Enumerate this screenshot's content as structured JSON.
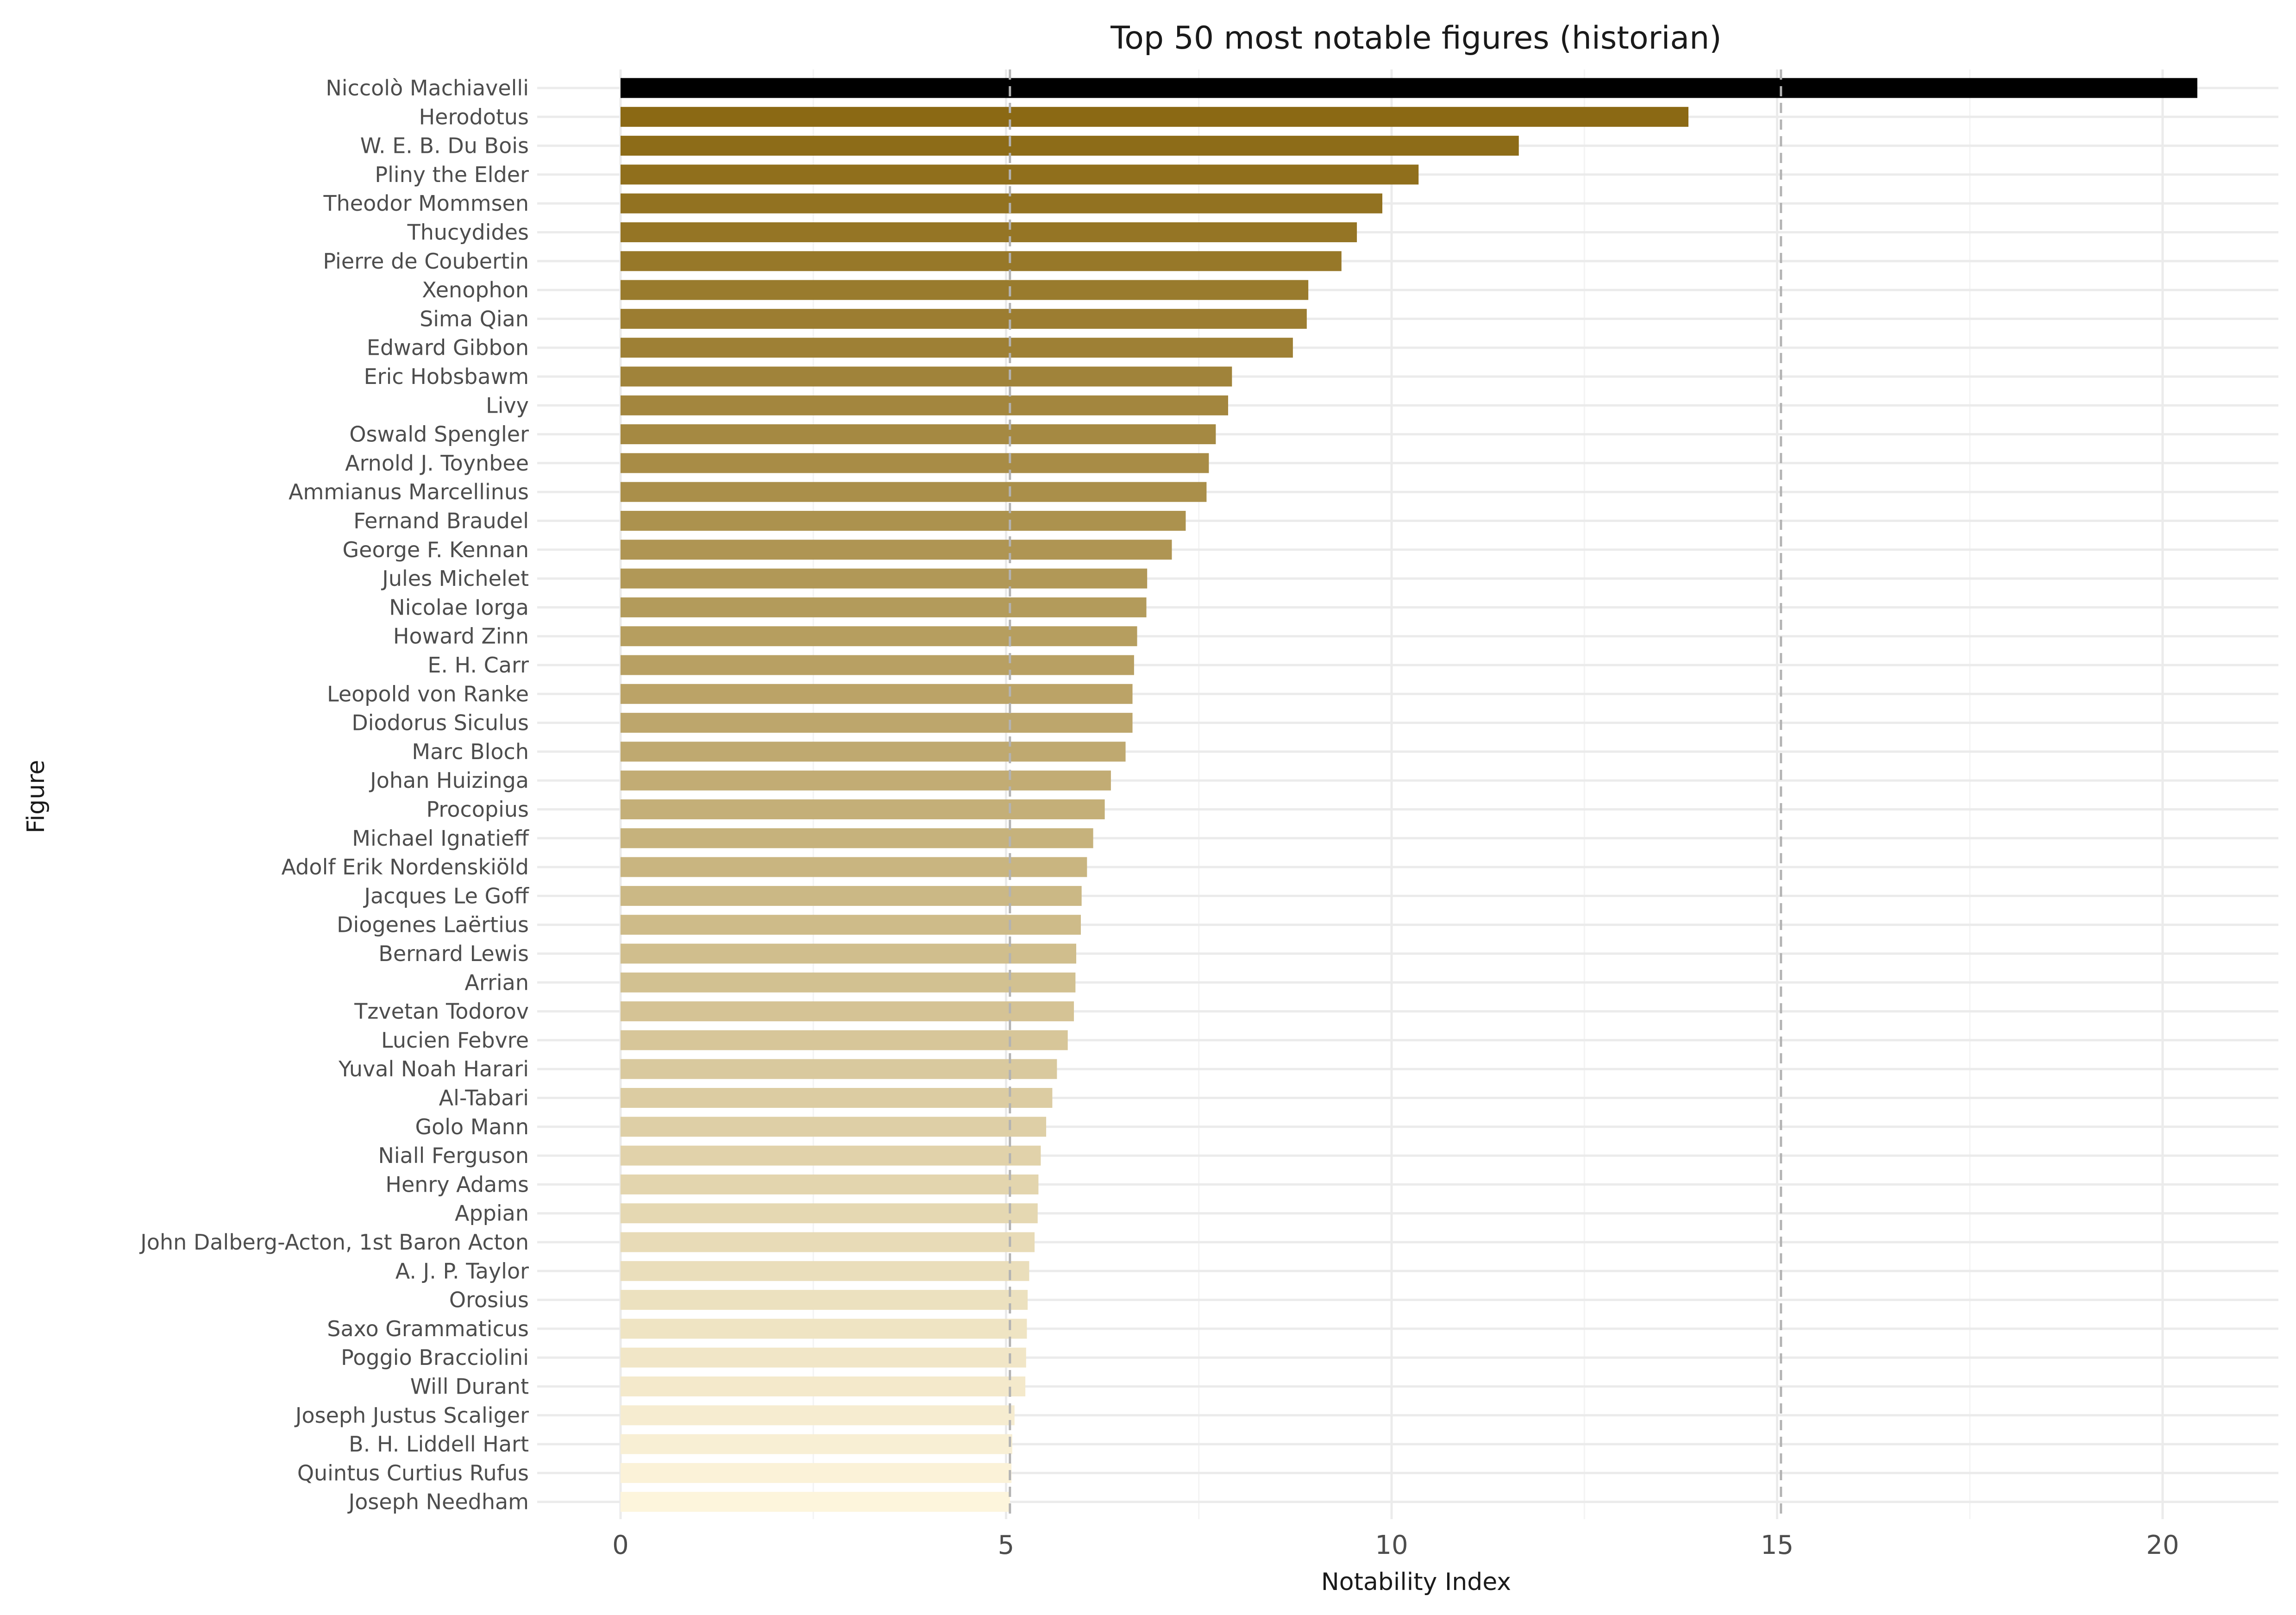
{
  "chart_data": {
    "type": "bar",
    "orientation": "horizontal",
    "title": "Top 50 most notable figures (historian)",
    "xlabel": "Notability Index",
    "ylabel": "Figure",
    "xlim": [
      -2,
      21.5
    ],
    "xticks": [
      0,
      5,
      10,
      15,
      20
    ],
    "grid": true,
    "legend": "none",
    "reference_lines": [
      5.05,
      15.05
    ],
    "color_scale": {
      "high": "#000000",
      "second": "#8b6914",
      "low": "#fdf5dc"
    },
    "categories": [
      "Niccolò Machiavelli",
      "Herodotus",
      "W. E. B. Du Bois",
      "Pliny the Elder",
      "Theodor Mommsen",
      "Thucydides",
      "Pierre de Coubertin",
      "Xenophon",
      "Sima Qian",
      "Edward Gibbon",
      "Eric Hobsbawm",
      "Livy",
      "Oswald Spengler",
      "Arnold J. Toynbee",
      "Ammianus Marcellinus",
      "Fernand Braudel",
      "George F. Kennan",
      "Jules Michelet",
      "Nicolae Iorga",
      "Howard Zinn",
      "E. H. Carr",
      "Leopold von Ranke",
      "Diodorus Siculus",
      "Marc Bloch",
      "Johan Huizinga",
      "Procopius",
      "Michael Ignatieff",
      "Adolf Erik Nordenskiöld",
      "Jacques Le Goff",
      "Diogenes Laërtius",
      "Bernard Lewis",
      "Arrian",
      "Tzvetan Todorov",
      "Lucien Febvre",
      "Yuval Noah Harari",
      "Al-Tabari",
      "Golo Mann",
      "Niall Ferguson",
      "Henry Adams",
      "Appian",
      "John Dalberg-Acton, 1st Baron Acton",
      "A. J. P. Taylor",
      "Orosius",
      "Saxo Grammaticus",
      "Poggio Bracciolini",
      "Will Durant",
      "Joseph Justus Scaliger",
      "B. H. Liddell Hart",
      "Quintus Curtius Rufus",
      "Joseph Needham"
    ],
    "values": [
      20.45,
      13.85,
      11.65,
      10.35,
      9.88,
      9.55,
      9.35,
      8.92,
      8.9,
      8.72,
      7.93,
      7.88,
      7.72,
      7.63,
      7.6,
      7.33,
      7.15,
      6.83,
      6.82,
      6.7,
      6.66,
      6.64,
      6.64,
      6.55,
      6.36,
      6.28,
      6.13,
      6.05,
      5.98,
      5.97,
      5.91,
      5.9,
      5.88,
      5.8,
      5.66,
      5.6,
      5.52,
      5.45,
      5.42,
      5.41,
      5.37,
      5.3,
      5.28,
      5.27,
      5.26,
      5.25,
      5.11,
      5.08,
      5.07,
      5.05
    ]
  }
}
